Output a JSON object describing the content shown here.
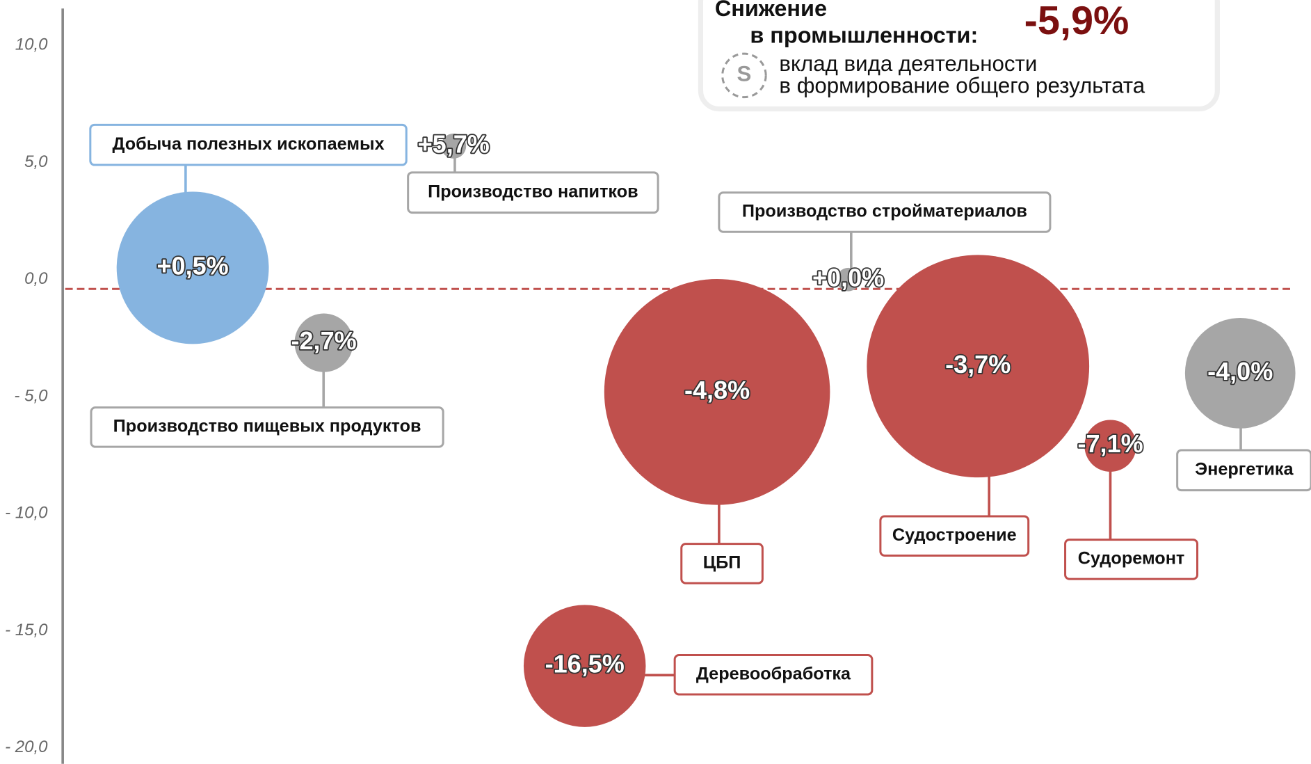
{
  "chart_data": {
    "type": "bubble",
    "categories": [
      "Добыча полезных ископаемых",
      "Производство напитков",
      "Производство пищевых продуктов",
      "Производство стройматериалов",
      "ЦБП",
      "Судостроение",
      "Судоремонт",
      "Энергетика",
      "Деревообработка"
    ],
    "x": [
      14.7,
      34.6,
      24.7,
      64.7,
      54.7,
      74.6,
      84.7,
      94.6,
      44.6
    ],
    "values": [
      0.5,
      5.7,
      -2.7,
      0.0,
      -4.8,
      -3.7,
      -7.1,
      -4.0,
      -16.5
    ],
    "value_labels": [
      "+0,5%",
      "+5,7%",
      "-2,7%",
      "+0,0%",
      "-4,8%",
      "-3,7%",
      "-7,1%",
      "-4,0%",
      "-16,5%"
    ],
    "sizes": [
      91,
      15,
      35,
      14,
      135,
      133,
      31,
      66,
      73
    ],
    "colors": [
      "#86b4e0",
      "#a6a6a6",
      "#a6a6a6",
      "#a6a6a6",
      "#c0504d",
      "#c0504d",
      "#c0504d",
      "#a6a6a6",
      "#c0504d"
    ],
    "xlim": [
      0,
      100
    ],
    "ylim": [
      -20.68,
      11.93
    ],
    "yticks": [
      {
        "value": 10,
        "label": "10,0"
      },
      {
        "value": 5,
        "label": "5,0"
      },
      {
        "value": 0,
        "label": "0,0"
      },
      {
        "value": -5,
        "label": "- 5,0"
      },
      {
        "value": -10,
        "label": "- 10,0"
      },
      {
        "value": -15,
        "label": "- 15,0"
      },
      {
        "value": -20,
        "label": "- 20,0"
      }
    ],
    "reference_line": -0.4,
    "summary_title": [
      "Снижение",
      "в промышленности:"
    ],
    "summary_label": "-5,9%",
    "legend_symbol": "S",
    "legend_text": [
      "вклад вида деятельности",
      "в формирование общего результата"
    ]
  }
}
